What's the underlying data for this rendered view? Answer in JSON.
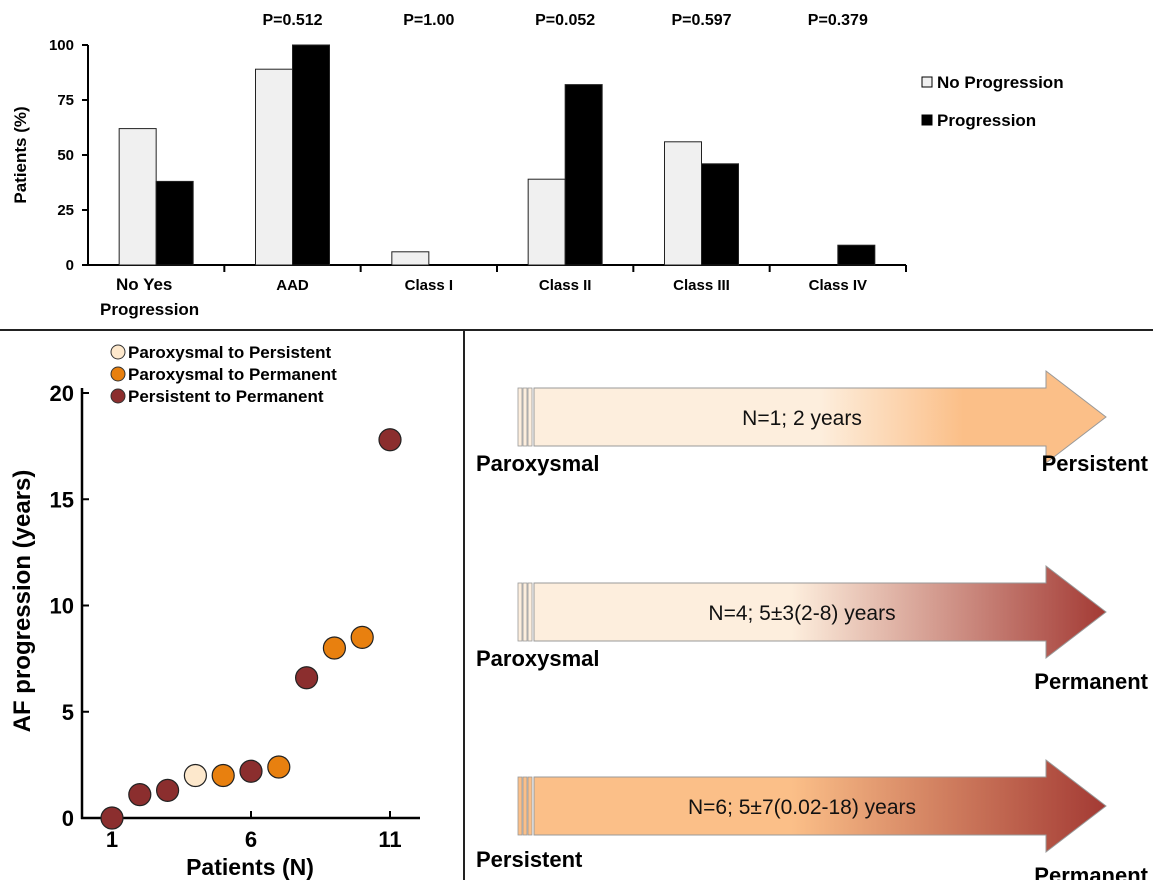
{
  "chart_data": [
    {
      "type": "bar",
      "ylabel": "Patients (%)",
      "yticks": [
        "100",
        "75",
        "50",
        "25",
        "0"
      ],
      "ylim": [
        0,
        100
      ],
      "grid": false,
      "legend_position": "right",
      "series": [
        {
          "name": "No Progression",
          "color": "#f0f0f0"
        },
        {
          "name": "Progression",
          "color": "#000000"
        }
      ],
      "groups": [
        {
          "label_lines": [
            "No  Yes",
            "Progression"
          ],
          "p_value": "",
          "values": [
            62,
            38
          ]
        },
        {
          "label_lines": [
            "AAD"
          ],
          "p_value": "P=0.512",
          "values": [
            89,
            100
          ]
        },
        {
          "label_lines": [
            "Class I"
          ],
          "p_value": "P=1.00",
          "values": [
            6,
            0
          ]
        },
        {
          "label_lines": [
            "Class II"
          ],
          "p_value": "P=0.052",
          "values": [
            39,
            82
          ]
        },
        {
          "label_lines": [
            "Class III"
          ],
          "p_value": "P=0.597",
          "values": [
            56,
            46
          ]
        },
        {
          "label_lines": [
            "Class IV"
          ],
          "p_value": "P=0.379",
          "values": [
            0,
            9
          ]
        }
      ]
    },
    {
      "type": "scatter",
      "xlabel": "Patients (N)",
      "ylabel": "AF progression  (years)",
      "xticks": [
        "1",
        "6",
        "11"
      ],
      "yticks": [
        "20",
        "15",
        "10",
        "5",
        "0"
      ],
      "xlim": [
        1,
        11
      ],
      "ylim": [
        0,
        20
      ],
      "legend_position": "top-left",
      "series": [
        {
          "name": "Paroxysmal to Persistent",
          "color": "#fde8cc",
          "points": [
            [
              4,
              2.0
            ]
          ]
        },
        {
          "name": "Paroxysmal to Permanent",
          "color": "#e8800f",
          "points": [
            [
              5,
              2.0
            ],
            [
              7,
              2.4
            ],
            [
              9,
              8.0
            ],
            [
              10,
              8.5
            ]
          ]
        },
        {
          "name": "Persistent to Permanent",
          "color": "#8b2e2e",
          "points": [
            [
              1,
              0.0
            ],
            [
              2,
              1.1
            ],
            [
              3,
              1.3
            ],
            [
              6,
              2.2
            ],
            [
              8,
              6.6
            ],
            [
              11,
              17.8
            ]
          ]
        }
      ]
    }
  ],
  "transitions": [
    {
      "summary": "N=1; 2 years",
      "from": "Paroxysmal",
      "to": "Persistent",
      "start_color": "#fdeedd",
      "end_color": "#fbbf88"
    },
    {
      "summary": "N=4; 5±3(2-8) years",
      "from": "Paroxysmal",
      "to": "Permanent",
      "start_color": "#fdeedd",
      "end_color": "#a33a34"
    },
    {
      "summary": "N=6; 5±7(0.02-18) years",
      "from": "Persistent",
      "to": "Permanent",
      "start_color": "#fbbf88",
      "end_color": "#a33a34"
    }
  ]
}
